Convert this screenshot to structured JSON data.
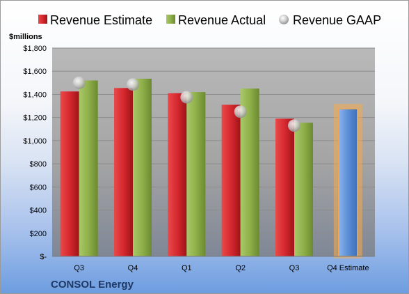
{
  "company": "CONSOL Energy",
  "unit_label": "$millions",
  "colors": {
    "estimate": "#d6282f",
    "actual": "#8fb04a",
    "gaap": "#c9c9c9",
    "projected": "#5b8fd6",
    "highlight": "#f5a94c"
  },
  "legend": [
    "Revenue Estimate",
    "Revenue Actual",
    "Revenue GAAP"
  ],
  "chart_data": {
    "type": "bar",
    "categories": [
      "Q3",
      "Q4",
      "Q1",
      "Q2",
      "Q3",
      "Q4 Estimate"
    ],
    "series": [
      {
        "name": "Revenue Estimate",
        "values": [
          1425,
          1455,
          1410,
          1310,
          1190,
          null
        ]
      },
      {
        "name": "Revenue Actual",
        "values": [
          1520,
          1535,
          1420,
          1450,
          1155,
          null
        ]
      },
      {
        "name": "Revenue GAAP",
        "values": [
          1500,
          1485,
          1375,
          1250,
          1130,
          null
        ]
      },
      {
        "name": "Q4 Estimate",
        "values": [
          null,
          null,
          null,
          null,
          null,
          1275
        ]
      }
    ],
    "ylabel": "$millions",
    "ylim": [
      0,
      1800
    ],
    "yticks": [
      0,
      200,
      400,
      600,
      800,
      1000,
      1200,
      1400,
      1600,
      1800
    ],
    "ytick_labels": [
      "$-",
      "$200",
      "$400",
      "$600",
      "$800",
      "$1,000",
      "$1,200",
      "$1,400",
      "$1,600",
      "$1,800"
    ],
    "grid": true,
    "legend_position": "top"
  }
}
